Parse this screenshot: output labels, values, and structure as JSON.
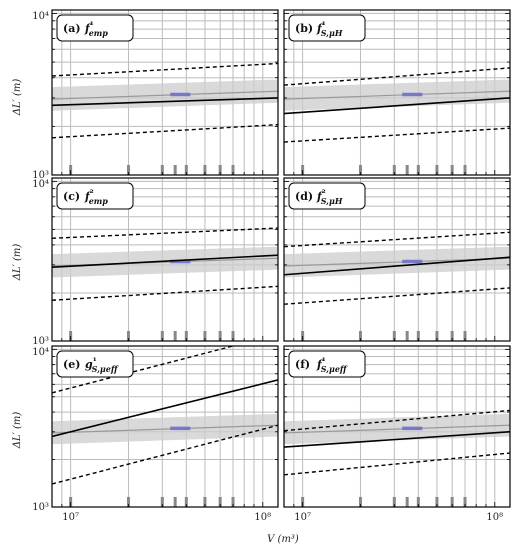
{
  "chart_data": {
    "type": "line",
    "layout": "3x2 grid of panels sharing axes",
    "xlabel": "V (m³)",
    "ylabel": "ΔL′ (m)",
    "xscale": "log",
    "yscale": "log",
    "xlim": [
      8000000,
      120000000
    ],
    "ylim": [
      1000,
      10500
    ],
    "x_ticks": [
      {
        "value": 10000000,
        "label": "10⁷"
      },
      {
        "value": 100000000,
        "label": "10⁸"
      }
    ],
    "y_ticks": [
      {
        "value": 1000,
        "label": "10³"
      },
      {
        "value": 10000,
        "label": "10⁴"
      }
    ],
    "grid": true,
    "observation_volumes": [
      10000000,
      20000000,
      30000000,
      35000000,
      40000000,
      50000000,
      60000000,
      70000000
    ],
    "reference_band": {
      "x": [
        8000000,
        120000000
      ],
      "center": [
        2950,
        3300
      ],
      "lower": [
        2500,
        2800
      ],
      "upper": [
        3500,
        3900
      ],
      "color": "#cccccc"
    },
    "reference_marker": {
      "x": [
        33000000,
        42000000
      ],
      "y": 3150,
      "color": "#7777cc"
    },
    "colors": {
      "band": "#cccccc",
      "center": "#999999",
      "marker": "#7777cc",
      "fit": "#000000",
      "grid": "#bbbbbb"
    },
    "panels": [
      {
        "label": "(a)",
        "title": "f¹emp",
        "series": [
          {
            "role": "fit",
            "x": [
              8000000,
              120000000
            ],
            "y": [
              2700,
              3000
            ]
          },
          {
            "role": "upper-bound",
            "x": [
              8000000,
              120000000
            ],
            "y": [
              4100,
              4900
            ]
          },
          {
            "role": "lower-bound",
            "x": [
              8000000,
              120000000
            ],
            "y": [
              1700,
              2050
            ]
          }
        ]
      },
      {
        "label": "(b)",
        "title": "f¹S,μH",
        "series": [
          {
            "role": "fit",
            "x": [
              8000000,
              120000000
            ],
            "y": [
              2400,
              3000
            ]
          },
          {
            "role": "upper-bound",
            "x": [
              8000000,
              120000000
            ],
            "y": [
              3600,
              4600
            ]
          },
          {
            "role": "lower-bound",
            "x": [
              8000000,
              120000000
            ],
            "y": [
              1600,
              1950
            ]
          }
        ]
      },
      {
        "label": "(c)",
        "title": "f²emp",
        "series": [
          {
            "role": "fit",
            "x": [
              8000000,
              120000000
            ],
            "y": [
              2900,
              3450
            ]
          },
          {
            "role": "upper-bound",
            "x": [
              8000000,
              120000000
            ],
            "y": [
              4400,
              5100
            ]
          },
          {
            "role": "lower-bound",
            "x": [
              8000000,
              120000000
            ],
            "y": [
              1800,
              2200
            ]
          }
        ]
      },
      {
        "label": "(d)",
        "title": "f²S,μH",
        "series": [
          {
            "role": "fit",
            "x": [
              8000000,
              120000000
            ],
            "y": [
              2600,
              3350
            ]
          },
          {
            "role": "upper-bound",
            "x": [
              8000000,
              120000000
            ],
            "y": [
              3900,
              4800
            ]
          },
          {
            "role": "lower-bound",
            "x": [
              8000000,
              120000000
            ],
            "y": [
              1700,
              2150
            ]
          }
        ]
      },
      {
        "label": "(e)",
        "title": "g¹S,μeff",
        "series": [
          {
            "role": "fit",
            "x": [
              8000000,
              120000000
            ],
            "y": [
              2800,
              6400
            ]
          },
          {
            "role": "upper-bound",
            "x": [
              8000000,
              70000000
            ],
            "y": [
              5300,
              10500
            ]
          },
          {
            "role": "lower-bound",
            "x": [
              8000000,
              120000000
            ],
            "y": [
              1400,
              3300
            ]
          }
        ]
      },
      {
        "label": "(f)",
        "title": "f¹S,μeff",
        "series": [
          {
            "role": "fit",
            "x": [
              8000000,
              120000000
            ],
            "y": [
              2400,
              3000
            ]
          },
          {
            "role": "upper-bound",
            "x": [
              8000000,
              120000000
            ],
            "y": [
              3050,
              4100
            ]
          },
          {
            "role": "lower-bound",
            "x": [
              8000000,
              120000000
            ],
            "y": [
              1600,
              2200
            ]
          }
        ]
      }
    ]
  }
}
